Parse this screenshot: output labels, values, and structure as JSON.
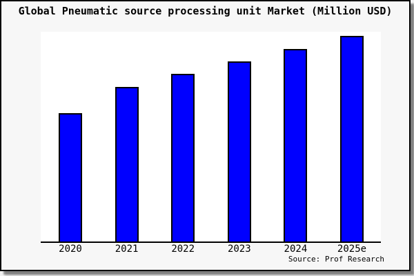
{
  "window": {
    "background_color": "#f7f7f7",
    "frame_border_color": "#000000",
    "plot_background_color": "#ffffff"
  },
  "chart_data": {
    "type": "bar",
    "title": "Global Pneumatic source processing unit Market (Million USD)",
    "categories": [
      "2020",
      "2021",
      "2022",
      "2023",
      "2024",
      "2025e"
    ],
    "values": [
      62.4,
      75.2,
      81.5,
      87.6,
      93.6,
      100
    ],
    "values_unit": "percent of tallest (2025e) bar; no y-axis ticks or value labels are shown in the image, values estimated from bar heights",
    "xlabel": "",
    "ylabel": "",
    "ylim": [
      0,
      102
    ],
    "grid": false,
    "legend": false,
    "bar_color": "#0000ff",
    "bar_border_color": "#000000",
    "axis_line_color": "#000000"
  },
  "footer": {
    "source_label": "Source: Prof Research"
  }
}
